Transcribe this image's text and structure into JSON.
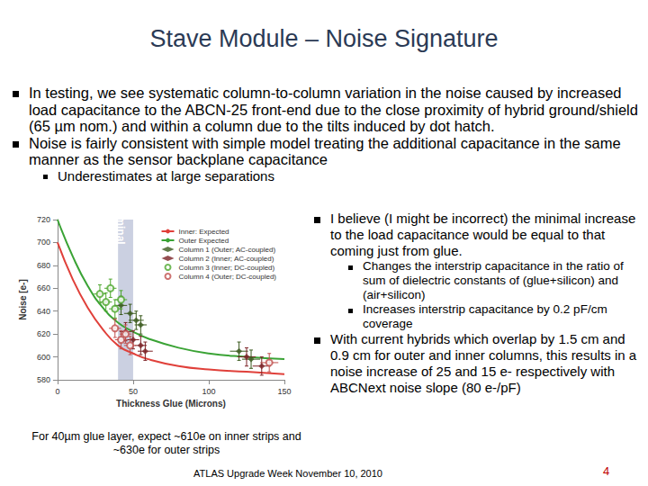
{
  "slide": {
    "title": "Stave Module – Noise Signature",
    "bullets": [
      {
        "text": "In testing, we see systematic column-to-column variation in the noise caused by increased load capacitance to the ABCN-25 front-end due to the close proximity of hybrid ground/shield (65 µm nom.) and within a column due to the tilts induced by dot hatch.",
        "sub": []
      },
      {
        "text": "Noise is fairly consistent with simple model treating the additional capacitance in the same manner as the sensor backplane capacitance",
        "sub": [
          "Underestimates at large separations"
        ]
      }
    ],
    "right_bullets": [
      {
        "text": "I believe (I might be incorrect) the minimal increase to the load capacitance would be equal to that coming just from glue.",
        "sub": [
          "Changes the interstrip capacitance in the ratio of sum of dielectric constants of (glue+silicon) and (air+silicon)",
          "Increases interstrip capacitance by 0.2 pF/cm coverage"
        ]
      },
      {
        "text": "With current hybrids which overlap by 1.5 cm and 0.9 cm for outer and inner columns, this results in a noise increase of 25 and 15 e- respectively with ABCNext noise slope (80 e-/pF)",
        "sub": []
      }
    ],
    "caption": "For 40µm glue layer, expect ~610e on inner strips and ~630e for outer strips",
    "footer": "ATLAS Upgrade Week November 10, 2010",
    "page_number": "4"
  },
  "chart_data": {
    "type": "scatter",
    "x_label": "Thickness Glue (Microns)",
    "y_label": "Noise [e-]",
    "xlim": [
      0,
      150
    ],
    "xticks": [
      0,
      50,
      100,
      150
    ],
    "ylim": [
      580,
      720
    ],
    "yticks": [
      580,
      600,
      620,
      640,
      660,
      680,
      700,
      720
    ],
    "grid": false,
    "legend": "upper right",
    "annotations": [
      {
        "text": "Nominal",
        "x_range": [
          40,
          50
        ]
      }
    ],
    "series": [
      {
        "name": "Inner: Expected",
        "type": "line",
        "color": "#e0403a",
        "x": [
          0,
          10,
          20,
          30,
          40,
          50,
          60,
          80,
          100,
          125,
          150
        ],
        "values": [
          700,
          668,
          643,
          624,
          610,
          603,
          598,
          592,
          589,
          587,
          585
        ]
      },
      {
        "name": "Outer Expected",
        "type": "line",
        "color": "#3aa335",
        "x": [
          0,
          10,
          20,
          30,
          40,
          50,
          60,
          80,
          100,
          125,
          150
        ],
        "values": [
          720,
          688,
          662,
          643,
          630,
          622,
          616,
          608,
          603,
          600,
          598
        ]
      },
      {
        "name": "Column 1 (Outer; AC-coupled)",
        "type": "scatter",
        "marker": "diamond",
        "color": "#3b5a1e",
        "x": [
          42,
          48,
          52,
          55,
          120,
          128
        ],
        "values": [
          645,
          638,
          632,
          628,
          605,
          598
        ],
        "x_error": [
          4,
          4,
          5,
          4,
          6,
          6
        ],
        "y_error": [
          8,
          8,
          8,
          8,
          8,
          8
        ]
      },
      {
        "name": "Column 2 (Inner; AC-coupled)",
        "type": "scatter",
        "marker": "diamond",
        "color": "#7b2226",
        "x": [
          45,
          50,
          55,
          58,
          125,
          135
        ],
        "values": [
          622,
          615,
          610,
          605,
          600,
          592
        ],
        "x_error": [
          4,
          4,
          4,
          5,
          6,
          6
        ],
        "y_error": [
          8,
          8,
          8,
          8,
          8,
          8
        ]
      },
      {
        "name": "Column 3 (Inner; DC-coupled)",
        "type": "scatter",
        "marker": "open_circle",
        "color": "#4ea72e",
        "x": [
          28,
          32,
          35,
          38,
          42
        ],
        "values": [
          655,
          648,
          660,
          642,
          650
        ],
        "x_error": [
          4,
          4,
          4,
          4,
          4
        ],
        "y_error": [
          8,
          8,
          8,
          8,
          8
        ]
      },
      {
        "name": "Column 4 (Outer; DC-coupled)",
        "type": "scatter",
        "marker": "open_circle",
        "color": "#c0504d",
        "x": [
          38,
          42,
          45,
          48,
          140
        ],
        "values": [
          625,
          615,
          620,
          610,
          595
        ],
        "x_error": [
          4,
          4,
          4,
          4,
          6
        ],
        "y_error": [
          8,
          8,
          8,
          8,
          8
        ]
      }
    ]
  }
}
